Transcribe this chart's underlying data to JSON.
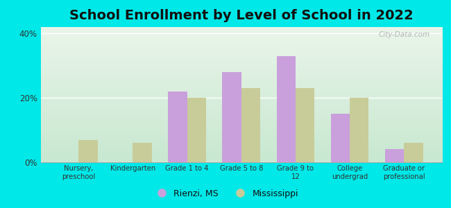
{
  "title": "School Enrollment by Level of School in 2022",
  "categories": [
    "Nursery,\npreschool",
    "Kindergarten",
    "Grade 1 to 4",
    "Grade 5 to 8",
    "Grade 9 to\n12",
    "College\nundergrad",
    "Graduate or\nprofessional"
  ],
  "rienzi": [
    0,
    0,
    22,
    28,
    33,
    15,
    4
  ],
  "mississippi": [
    7,
    6,
    20,
    23,
    23,
    20,
    6
  ],
  "rienzi_color": "#c9a0dc",
  "mississippi_color": "#c8cc99",
  "background_outer": "#00e8e8",
  "grad_top": "#eaf5ea",
  "grad_bottom": "#c8e8d0",
  "ylabel_ticks": [
    "0%",
    "20%",
    "40%"
  ],
  "yticks": [
    0,
    20,
    40
  ],
  "ylim": [
    0,
    42
  ],
  "title_fontsize": 14,
  "legend_label_rienzi": "Rienzi, MS",
  "legend_label_mississippi": "Mississippi",
  "bar_width": 0.35,
  "watermark": "City-Data.com"
}
